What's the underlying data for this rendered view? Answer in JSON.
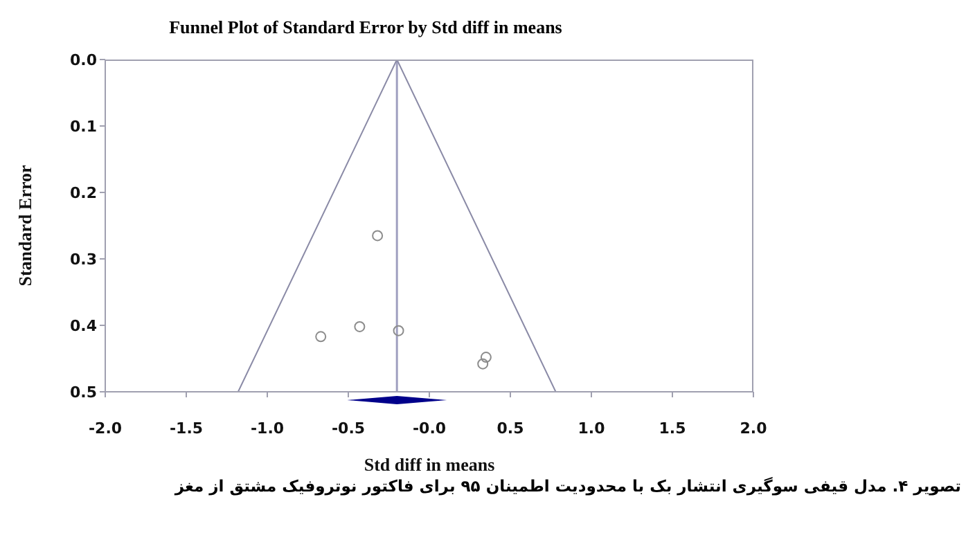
{
  "chart_data": {
    "type": "scatter",
    "title": "Funnel Plot of Standard Error by Std diff in means",
    "xlabel": "Std diff in means",
    "ylabel": "Standard Error",
    "annotations": [
      "تصویر ۴. مدل قیفی سوگیری انتشار بک با محدودیت اطمینان ۹۵ برای فاکتور نوتروفیک مشتق از مغز"
    ],
    "series": [
      {
        "color": "#8c8c8c",
        "marker": "circle",
        "x": [
          -0.32,
          -0.67,
          -0.43,
          -0.19,
          0.35,
          0.33
        ],
        "values": [
          0.265,
          0.417,
          0.402,
          0.408,
          0.448,
          0.458
        ]
      },
      {
        "type": "line",
        "color": "#8a8aa6",
        "marker": "none",
        "x": [
          -1.18,
          -0.2,
          0.78
        ],
        "values": [
          0.5,
          0,
          0.5
        ]
      }
    ],
    "xlim": [
      -2,
      2
    ],
    "xticks": [
      {
        "value": -2,
        "label": "-2.0"
      },
      {
        "value": -1.5,
        "label": "-1.5"
      },
      {
        "value": -1,
        "label": "-1.0"
      },
      {
        "value": -0.5,
        "label": "-0.5"
      },
      {
        "value": 0,
        "label": "-0.0"
      },
      {
        "value": 0.5,
        "label": "0.5"
      },
      {
        "value": 1,
        "label": "1.0"
      },
      {
        "value": 1.5,
        "label": "1.5"
      },
      {
        "value": 2,
        "label": "2.0"
      }
    ],
    "ylim": [
      0.5,
      0
    ],
    "yticks": [
      {
        "value": 0,
        "label": "0.0"
      },
      {
        "value": 0.1,
        "label": "0.1"
      },
      {
        "value": 0.2,
        "label": "0.2"
      },
      {
        "value": 0.3,
        "label": "0.3"
      },
      {
        "value": 0.4,
        "label": "0.4"
      },
      {
        "value": 0.5,
        "label": "0.5"
      }
    ],
    "ref_lines": [
      {
        "axis": "x",
        "value": -0.2,
        "color": "#a0a0c0"
      }
    ]
  }
}
